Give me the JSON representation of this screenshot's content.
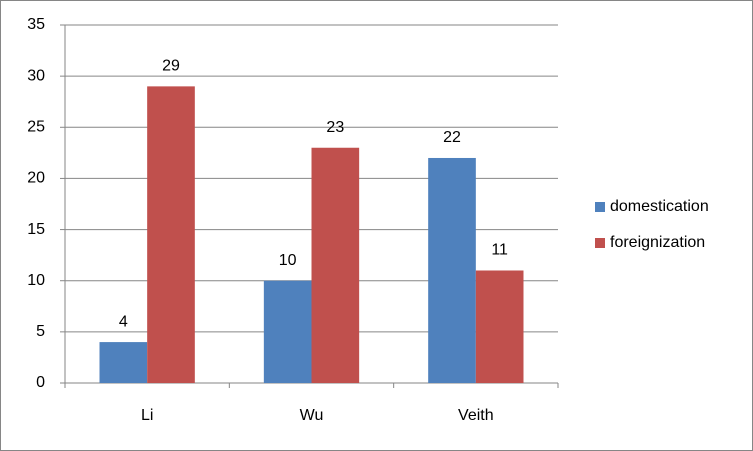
{
  "chart_data": {
    "type": "bar",
    "categories": [
      "Li",
      "Wu",
      "Veith"
    ],
    "series": [
      {
        "name": "domestication",
        "color": "#4f81bd",
        "values": [
          4,
          10,
          22
        ]
      },
      {
        "name": "foreignization",
        "color": "#c0504d",
        "values": [
          29,
          23,
          11
        ]
      }
    ],
    "ylim": [
      0,
      35
    ],
    "yticks": [
      0,
      5,
      10,
      15,
      20,
      25,
      30,
      35
    ],
    "grid": true,
    "legend": "right"
  }
}
